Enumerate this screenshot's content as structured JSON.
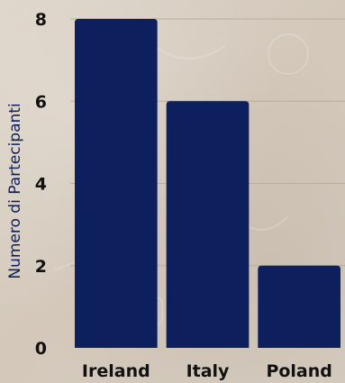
{
  "chart_data": {
    "type": "bar",
    "categories": [
      "Ireland",
      "Italy",
      "Poland"
    ],
    "values": [
      8,
      6,
      2
    ],
    "title": "",
    "xlabel": "",
    "ylabel": "Numero di Partecipanti",
    "ylim": [
      0,
      8
    ],
    "yticks": [
      0,
      2,
      4,
      6,
      8
    ],
    "grid": true,
    "legend": "none",
    "bar_color": "#0d1f5c",
    "ylabel_color": "#0d1f5c",
    "grid_color": "#b8ad9f"
  }
}
